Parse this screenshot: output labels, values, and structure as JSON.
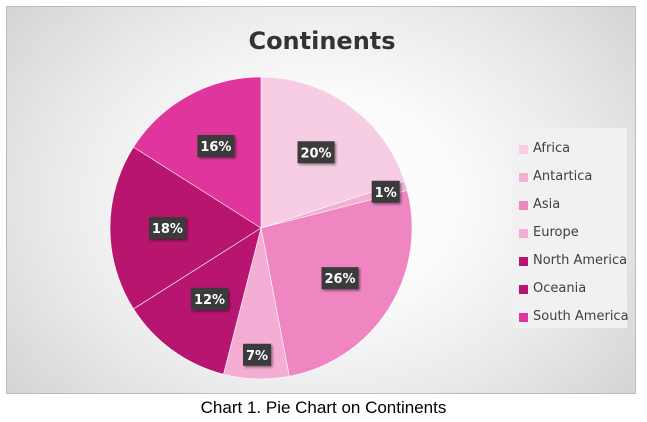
{
  "chart_data": {
    "type": "pie",
    "title": "Continents",
    "categories": [
      "Africa",
      "Antartica",
      "Asia",
      "Europe",
      "North America",
      "Oceania",
      "South America"
    ],
    "values": [
      20,
      1,
      26,
      7,
      12,
      18,
      16
    ],
    "data_labels": [
      "20%",
      "1%",
      "26%",
      "7%",
      "12%",
      "18%",
      "16%"
    ],
    "colors": [
      "#f7cde4",
      "#f3b0d2",
      "#ef86c1",
      "#f4aed5",
      "#b7156f",
      "#b8156e",
      "#e0359c"
    ],
    "legend_position": "right",
    "start_angle": "12 o'clock, clockwise"
  },
  "caption": "Chart 1. Pie Chart on Continents"
}
